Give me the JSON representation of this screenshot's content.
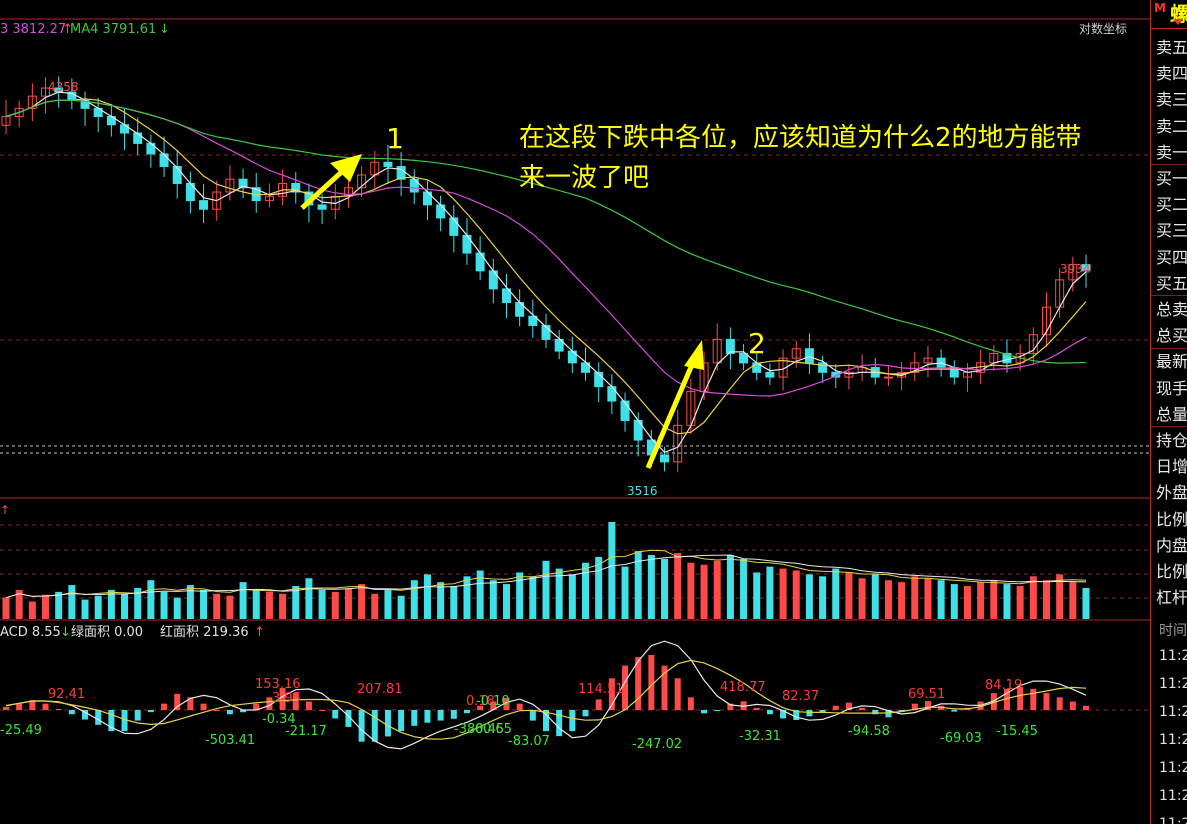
{
  "header": {
    "ma3_label": "3 3812.27",
    "ma3_arrow": "↑",
    "ma4_label": "MA4 3791.61",
    "ma4_arrow": "↓",
    "scale_mode": "对数坐标"
  },
  "annotations": {
    "marker1": "1",
    "marker2": "2",
    "comment_line1": "在这段下跌中各位，应该知道为什么2的地方能带",
    "comment_line2": "来一波了吧",
    "arrow_color": "#ffff00"
  },
  "price_labels": {
    "high_left": "4358",
    "low": "3516",
    "high_right": "3934"
  },
  "volume_header": "↑",
  "macd_header": {
    "macd": "ACD 8.55",
    "macd_arrow": "↓",
    "green_area": "绿面积 0.00",
    "red_area": "红面积 219.36",
    "red_arrow": "↑"
  },
  "sidebar": {
    "title": "螺",
    "menu_icon": "M",
    "items": [
      "卖五",
      "卖四",
      "卖三",
      "卖二",
      "卖一",
      "买一",
      "买二",
      "买三",
      "买四",
      "买五",
      "总卖",
      "总买",
      "最新",
      "现手",
      "总量",
      "持仓",
      "日增",
      "外盘",
      "比例",
      "内盘",
      "比例",
      "杠杆"
    ],
    "time_header": "时间",
    "times": [
      "11:2",
      "11:2",
      "11:2",
      "11:2",
      "11:2",
      "11:2",
      "11:2"
    ]
  },
  "colors": {
    "up_red": "#ff4a4a",
    "down_cyan": "#3fe0e8",
    "ma_white": "#e8e8e8",
    "ma_yellow": "#e6d24a",
    "ma_magenta": "#d84bd8",
    "ma_green": "#3cc83c",
    "pane_border": "#b02828",
    "macd_red_label": "#ff3838",
    "macd_green_label": "#39e639"
  },
  "chart_data": [
    {
      "type": "candlestick",
      "pane": "price",
      "scale": "log",
      "y_range": [
        3480,
        4420
      ],
      "series_close": [
        4280,
        4300,
        4330,
        4350,
        4340,
        4320,
        4300,
        4280,
        4260,
        4240,
        4215,
        4190,
        4160,
        4120,
        4080,
        4060,
        4100,
        4130,
        4110,
        4080,
        4090,
        4120,
        4100,
        4070,
        4060,
        4090,
        4110,
        4140,
        4170,
        4160,
        4130,
        4100,
        4070,
        4040,
        4000,
        3960,
        3920,
        3880,
        3850,
        3820,
        3800,
        3770,
        3745,
        3720,
        3700,
        3670,
        3640,
        3600,
        3560,
        3530,
        3516,
        3590,
        3660,
        3720,
        3770,
        3740,
        3720,
        3700,
        3690,
        3730,
        3750,
        3720,
        3700,
        3690,
        3700,
        3710,
        3690,
        3690,
        3700,
        3720,
        3730,
        3710,
        3690,
        3700,
        3720,
        3740,
        3720,
        3740,
        3780,
        3840,
        3900,
        3934,
        3920
      ],
      "high_label": 4358,
      "low_label": 3516,
      "right_high_label": 3934,
      "moving_averages": [
        {
          "color": "ma_white",
          "period": "short"
        },
        {
          "color": "ma_yellow",
          "period": "medium"
        },
        {
          "color": "ma_magenta",
          "period": "long"
        },
        {
          "color": "ma_green",
          "period": "very long"
        }
      ]
    },
    {
      "type": "bar",
      "pane": "volume",
      "values": [
        22,
        30,
        18,
        25,
        28,
        35,
        20,
        24,
        30,
        26,
        32,
        40,
        28,
        22,
        35,
        30,
        26,
        24,
        38,
        30,
        28,
        26,
        34,
        42,
        30,
        28,
        32,
        36,
        26,
        30,
        24,
        40,
        46,
        38,
        34,
        44,
        50,
        40,
        36,
        48,
        44,
        60,
        52,
        46,
        58,
        64,
        100,
        54,
        70,
        66,
        62,
        68,
        58,
        56,
        60,
        66,
        62,
        48,
        54,
        52,
        50,
        46,
        44,
        52,
        48,
        42,
        46,
        40,
        38,
        44,
        42,
        40,
        36,
        34,
        38,
        40,
        36,
        34,
        44,
        40,
        46,
        38,
        32
      ]
    },
    {
      "type": "bar",
      "pane": "macd",
      "histogram": [
        30,
        60,
        92.41,
        60,
        10,
        -40,
        -90,
        -140,
        -200,
        -200,
        -100,
        -20,
        60,
        153.16,
        120,
        60,
        0,
        -40,
        -21.17,
        60,
        120,
        207.81,
        160,
        80,
        0,
        -80,
        -160,
        -300,
        -300,
        -250,
        -200,
        -150,
        -120,
        -100,
        -83.07,
        -30,
        40,
        80,
        114.51,
        60,
        -100,
        -200,
        -247.02,
        -200,
        -60,
        100,
        300,
        420,
        500,
        520,
        418.77,
        300,
        120,
        -32.31,
        -10,
        60,
        82.37,
        20,
        -40,
        -80,
        -94.58,
        -60,
        -20,
        40,
        69.51,
        20,
        -40,
        -69.03,
        -20,
        60,
        84.19,
        40,
        -15.45,
        20,
        80,
        160,
        200,
        220,
        200,
        160,
        120,
        80,
        40
      ],
      "data_labels": [
        "92.41",
        "-25.49",
        "153.16",
        "3.95",
        "-0.34",
        "-503.41",
        "-21.17",
        "207.81",
        "0.18",
        "-0.10",
        "-380.45",
        "-60.65",
        "-83.07",
        "114.51",
        "-247.02",
        "418.77",
        "-32.31",
        "82.37",
        "-94.58",
        "69.51",
        "-69.03",
        "84.19",
        "-15.45"
      ]
    }
  ]
}
